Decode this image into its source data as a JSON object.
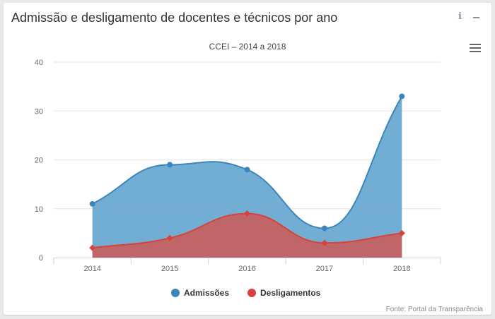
{
  "card": {
    "title": "Admissão e desligamento de docentes e técnicos por ano"
  },
  "icons": {
    "info": "i",
    "info_name": "info-icon",
    "minimize_name": "minimize-icon",
    "menu_name": "hamburger-menu-icon"
  },
  "colors": {
    "admissoes": "#3a86bd",
    "admissoes_fill": "#6aa9d1",
    "desligamentos": "#d9423a",
    "desligamentos_fill": "#c56262",
    "grid": "#e6e6e6",
    "axis_text": "#666666"
  },
  "chart_data": {
    "type": "area",
    "title": "CCEI – 2014 a 2018",
    "categories": [
      "2014",
      "2015",
      "2016",
      "2017",
      "2018"
    ],
    "ylim": [
      0,
      40
    ],
    "yticks": [
      0,
      10,
      20,
      30,
      40
    ],
    "grid": true,
    "legend_position": "bottom",
    "series": [
      {
        "name": "Admissões",
        "values": [
          11,
          19,
          18,
          6,
          33
        ]
      },
      {
        "name": "Desligamentos",
        "values": [
          2,
          4,
          9,
          3,
          5
        ]
      }
    ],
    "credits": "Fonte: Portal da Transparência"
  }
}
